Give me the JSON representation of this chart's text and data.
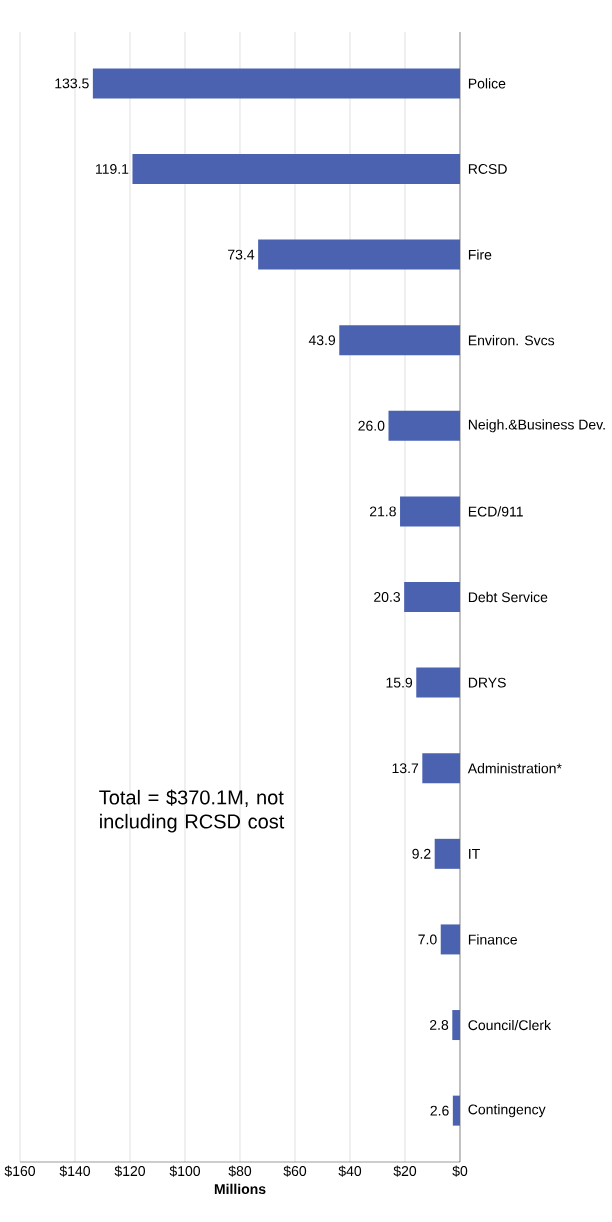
{
  "chart_data": {
    "type": "bar",
    "orientation": "horizontal",
    "categories": [
      "Police",
      "RCSD",
      "Fire",
      "Environ. Svcs",
      "Neigh.&Business Dev.",
      "ECD/911",
      "Debt Service",
      "DRYS",
      "Administration*",
      "IT",
      "Finance",
      "Council/Clerk",
      "Contingency"
    ],
    "values": [
      133.5,
      119.1,
      73.4,
      43.9,
      26.0,
      21.8,
      20.3,
      15.9,
      13.7,
      9.2,
      7.0,
      2.8,
      2.6
    ],
    "color": "#4a62b0",
    "xlabel": "Millions",
    "xlim": [
      160,
      0
    ],
    "xticks": [
      {
        "value": 160,
        "label": "$160"
      },
      {
        "value": 140,
        "label": "$140"
      },
      {
        "value": 120,
        "label": "$120"
      },
      {
        "value": 100,
        "label": "$100"
      },
      {
        "value": 80,
        "label": "$80"
      },
      {
        "value": 60,
        "label": "$60"
      },
      {
        "value": 40,
        "label": "$40"
      },
      {
        "value": 20,
        "label": "$20"
      },
      {
        "value": 0,
        "label": "$0"
      }
    ],
    "value_labels": [
      "133.5",
      "119.1",
      "73.4",
      "43.9",
      "26.0",
      "21.8",
      "20.3",
      "15.9",
      "13.7",
      "9.2",
      "7.0",
      "2.8",
      "2.6"
    ],
    "grid": "x",
    "annotations": [
      "Total = $370.1M, not including RCSD cost"
    ]
  }
}
